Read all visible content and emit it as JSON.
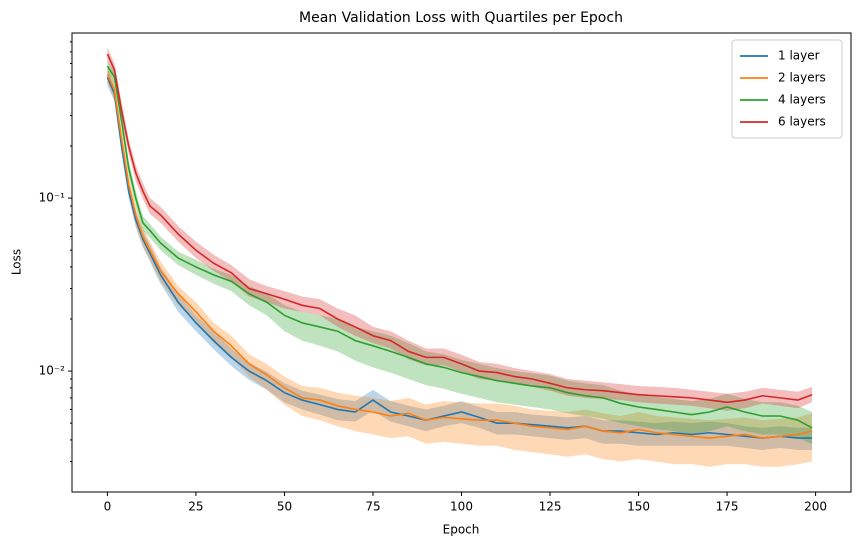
{
  "chart_data": {
    "type": "line",
    "title": "Mean Validation Loss with Quartiles per Epoch",
    "xlabel": "Epoch",
    "ylabel": "Loss",
    "log_y": true,
    "legend": "upper right",
    "xlim": [
      -10,
      210
    ],
    "xticks": [
      0,
      25,
      50,
      75,
      100,
      125,
      150,
      175,
      200
    ],
    "ylim": [
      0.002,
      0.9
    ],
    "yticks": [
      {
        "value": 0.01,
        "label": "10⁻²"
      },
      {
        "value": 0.1,
        "label": "10⁻¹"
      }
    ],
    "yminorticks": [
      0.003,
      0.004,
      0.005,
      0.006,
      0.007,
      0.008,
      0.009,
      0.02,
      0.03,
      0.04,
      0.05,
      0.06,
      0.07,
      0.08,
      0.09,
      0.2,
      0.3,
      0.4,
      0.5,
      0.6,
      0.7,
      0.8
    ],
    "x": [
      0,
      2,
      4,
      6,
      8,
      10,
      12,
      15,
      20,
      25,
      30,
      35,
      40,
      45,
      50,
      55,
      60,
      65,
      70,
      75,
      80,
      85,
      90,
      95,
      100,
      105,
      110,
      115,
      120,
      125,
      130,
      135,
      140,
      145,
      150,
      155,
      160,
      165,
      170,
      175,
      180,
      185,
      190,
      195,
      199
    ],
    "series": [
      {
        "name": "1 layer",
        "color": "#1f77b4",
        "values": [
          0.5,
          0.4,
          0.2,
          0.11,
          0.075,
          0.058,
          0.048,
          0.036,
          0.025,
          0.019,
          0.015,
          0.012,
          0.01,
          0.0088,
          0.0075,
          0.0068,
          0.0064,
          0.006,
          0.0058,
          0.0068,
          0.0058,
          0.0055,
          0.0052,
          0.0055,
          0.0058,
          0.0054,
          0.005,
          0.005,
          0.0049,
          0.0048,
          0.0047,
          0.0048,
          0.0045,
          0.0045,
          0.0044,
          0.0043,
          0.0044,
          0.0043,
          0.0044,
          0.0043,
          0.0042,
          0.0041,
          0.0042,
          0.0041,
          0.0041
        ],
        "upper": [
          0.56,
          0.45,
          0.22,
          0.12,
          0.084,
          0.065,
          0.054,
          0.04,
          0.028,
          0.021,
          0.017,
          0.0135,
          0.0112,
          0.0099,
          0.0085,
          0.0077,
          0.0073,
          0.0069,
          0.0067,
          0.0078,
          0.0067,
          0.0063,
          0.006,
          0.0063,
          0.0067,
          0.0062,
          0.0058,
          0.0058,
          0.0056,
          0.0055,
          0.0054,
          0.0055,
          0.0052,
          0.0052,
          0.0051,
          0.005,
          0.0051,
          0.005,
          0.0051,
          0.005,
          0.0048,
          0.0047,
          0.0048,
          0.0047,
          0.0047
        ],
        "lower": [
          0.45,
          0.36,
          0.18,
          0.1,
          0.068,
          0.052,
          0.043,
          0.032,
          0.022,
          0.017,
          0.0134,
          0.0107,
          0.0089,
          0.0078,
          0.0066,
          0.006,
          0.0056,
          0.0052,
          0.0051,
          0.0059,
          0.0051,
          0.0048,
          0.0045,
          0.0048,
          0.005,
          0.0047,
          0.0043,
          0.0043,
          0.0042,
          0.0041,
          0.004,
          0.0041,
          0.0038,
          0.0038,
          0.0037,
          0.0037,
          0.0037,
          0.0037,
          0.0037,
          0.0037,
          0.0036,
          0.0035,
          0.0036,
          0.0035,
          0.0035
        ]
      },
      {
        "name": "2 layers",
        "color": "#ff7f0e",
        "values": [
          0.52,
          0.42,
          0.22,
          0.12,
          0.08,
          0.06,
          0.05,
          0.038,
          0.028,
          0.022,
          0.017,
          0.014,
          0.011,
          0.0095,
          0.008,
          0.007,
          0.0068,
          0.0063,
          0.006,
          0.0058,
          0.0055,
          0.0057,
          0.0052,
          0.0054,
          0.0053,
          0.0052,
          0.0052,
          0.005,
          0.0048,
          0.0047,
          0.0046,
          0.0048,
          0.0045,
          0.0044,
          0.0046,
          0.0044,
          0.0043,
          0.0042,
          0.0041,
          0.0042,
          0.0043,
          0.0041,
          0.0042,
          0.0043,
          0.0045
        ],
        "upper": [
          0.58,
          0.47,
          0.25,
          0.135,
          0.09,
          0.067,
          0.056,
          0.043,
          0.031,
          0.025,
          0.019,
          0.016,
          0.0125,
          0.011,
          0.0093,
          0.0082,
          0.008,
          0.0075,
          0.0072,
          0.007,
          0.0067,
          0.007,
          0.0064,
          0.0067,
          0.0066,
          0.0065,
          0.0065,
          0.0063,
          0.006,
          0.0059,
          0.0058,
          0.006,
          0.0057,
          0.0055,
          0.0058,
          0.0055,
          0.0054,
          0.0053,
          0.0052,
          0.0053,
          0.0054,
          0.0052,
          0.0053,
          0.0054,
          0.0057
        ],
        "lower": [
          0.46,
          0.37,
          0.19,
          0.105,
          0.07,
          0.053,
          0.044,
          0.033,
          0.024,
          0.019,
          0.0145,
          0.012,
          0.0093,
          0.0078,
          0.0064,
          0.0055,
          0.0052,
          0.0048,
          0.0045,
          0.0043,
          0.0041,
          0.0042,
          0.0038,
          0.0039,
          0.0038,
          0.0037,
          0.0037,
          0.0035,
          0.0034,
          0.0033,
          0.0032,
          0.0033,
          0.0031,
          0.003,
          0.0031,
          0.003,
          0.0029,
          0.0029,
          0.0028,
          0.0029,
          0.0029,
          0.0028,
          0.0028,
          0.0029,
          0.003
        ]
      },
      {
        "name": "4 layers",
        "color": "#2ca02c",
        "values": [
          0.58,
          0.5,
          0.28,
          0.15,
          0.1,
          0.072,
          0.065,
          0.055,
          0.045,
          0.04,
          0.036,
          0.033,
          0.028,
          0.025,
          0.021,
          0.019,
          0.018,
          0.017,
          0.015,
          0.014,
          0.013,
          0.012,
          0.011,
          0.0105,
          0.0098,
          0.0093,
          0.0088,
          0.0085,
          0.0082,
          0.008,
          0.0075,
          0.0072,
          0.007,
          0.0065,
          0.0062,
          0.006,
          0.0058,
          0.0056,
          0.0058,
          0.0062,
          0.0058,
          0.0055,
          0.0055,
          0.0052,
          0.0047
        ],
        "upper": [
          0.62,
          0.54,
          0.31,
          0.165,
          0.11,
          0.079,
          0.071,
          0.06,
          0.049,
          0.044,
          0.039,
          0.036,
          0.031,
          0.028,
          0.024,
          0.022,
          0.021,
          0.02,
          0.018,
          0.017,
          0.016,
          0.0145,
          0.013,
          0.0125,
          0.0116,
          0.011,
          0.0104,
          0.01,
          0.0097,
          0.0094,
          0.0088,
          0.0085,
          0.0083,
          0.0077,
          0.0073,
          0.0071,
          0.0069,
          0.0067,
          0.0069,
          0.0074,
          0.0069,
          0.0066,
          0.0066,
          0.0063,
          0.0058
        ],
        "lower": [
          0.54,
          0.46,
          0.25,
          0.135,
          0.09,
          0.065,
          0.059,
          0.05,
          0.041,
          0.036,
          0.032,
          0.029,
          0.024,
          0.021,
          0.017,
          0.015,
          0.014,
          0.013,
          0.0115,
          0.0105,
          0.0098,
          0.009,
          0.0083,
          0.0079,
          0.0074,
          0.007,
          0.0066,
          0.0064,
          0.0062,
          0.006,
          0.0057,
          0.0055,
          0.0053,
          0.005,
          0.0048,
          0.0046,
          0.0045,
          0.0043,
          0.0045,
          0.0048,
          0.0045,
          0.0043,
          0.0043,
          0.0041,
          0.0038
        ]
      },
      {
        "name": "6 layers",
        "color": "#d62728",
        "values": [
          0.68,
          0.55,
          0.32,
          0.2,
          0.14,
          0.11,
          0.09,
          0.08,
          0.062,
          0.05,
          0.042,
          0.037,
          0.03,
          0.028,
          0.026,
          0.024,
          0.023,
          0.02,
          0.018,
          0.016,
          0.015,
          0.013,
          0.012,
          0.012,
          0.011,
          0.01,
          0.0098,
          0.0093,
          0.009,
          0.0085,
          0.008,
          0.0078,
          0.0077,
          0.0075,
          0.0073,
          0.0072,
          0.0071,
          0.007,
          0.0068,
          0.0066,
          0.0068,
          0.0072,
          0.007,
          0.0068,
          0.0073
        ],
        "upper": [
          0.74,
          0.6,
          0.36,
          0.22,
          0.155,
          0.122,
          0.1,
          0.089,
          0.069,
          0.056,
          0.047,
          0.041,
          0.034,
          0.031,
          0.029,
          0.027,
          0.026,
          0.023,
          0.021,
          0.018,
          0.017,
          0.015,
          0.0135,
          0.0135,
          0.0124,
          0.0113,
          0.011,
          0.0104,
          0.01,
          0.0096,
          0.009,
          0.0088,
          0.0086,
          0.0084,
          0.0082,
          0.0081,
          0.008,
          0.0078,
          0.0076,
          0.0074,
          0.0076,
          0.008,
          0.0078,
          0.0076,
          0.0081
        ],
        "lower": [
          0.62,
          0.5,
          0.29,
          0.18,
          0.126,
          0.099,
          0.081,
          0.072,
          0.056,
          0.045,
          0.038,
          0.033,
          0.027,
          0.025,
          0.023,
          0.022,
          0.021,
          0.018,
          0.016,
          0.0145,
          0.0135,
          0.0117,
          0.0108,
          0.0108,
          0.0099,
          0.009,
          0.0088,
          0.0084,
          0.0081,
          0.0077,
          0.0072,
          0.007,
          0.0069,
          0.0068,
          0.0066,
          0.0065,
          0.0064,
          0.0063,
          0.0061,
          0.0059,
          0.0061,
          0.0065,
          0.0063,
          0.0061,
          0.0066
        ]
      }
    ]
  }
}
